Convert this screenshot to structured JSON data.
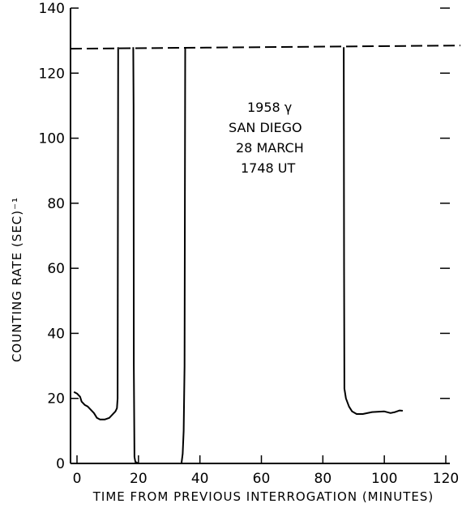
{
  "chart_data": {
    "type": "line",
    "title": "",
    "xlabel": "TIME FROM PREVIOUS INTERROGATION (MINUTES)",
    "ylabel": "COUNTING RATE (SEC)⁻¹",
    "xlim": [
      0,
      120
    ],
    "ylim": [
      0,
      140
    ],
    "xticks": [
      "0",
      "20",
      "40",
      "60",
      "80",
      "100",
      "120"
    ],
    "yticks": [
      "0",
      "20",
      "40",
      "60",
      "80",
      "100",
      "120",
      "140"
    ],
    "grid": false,
    "annotation": [
      "1958 γ",
      "SAN DIEGO",
      "28 MARCH",
      "1748 UT"
    ],
    "saturation_level": 128,
    "series": [
      {
        "values": [
          [
            -1,
            22
          ],
          [
            0,
            21.5
          ],
          [
            1,
            20.5
          ],
          [
            1.5,
            19
          ],
          [
            2.5,
            18
          ],
          [
            3.5,
            17.5
          ],
          [
            4.5,
            16.5
          ],
          [
            5.5,
            15.5
          ],
          [
            6.5,
            14
          ],
          [
            7.5,
            13.5
          ],
          [
            9,
            13.5
          ],
          [
            10.5,
            14
          ],
          [
            11.5,
            15
          ],
          [
            12.5,
            16
          ],
          [
            13,
            17
          ],
          [
            13.2,
            20
          ],
          [
            13.4,
            128
          ]
        ]
      },
      {
        "values": [
          [
            18.3,
            128
          ],
          [
            18.4,
            110
          ],
          [
            18.5,
            30
          ],
          [
            18.7,
            2
          ],
          [
            19,
            0.5
          ],
          [
            20,
            0
          ]
        ]
      },
      {
        "values": [
          [
            34,
            0
          ],
          [
            34.4,
            3
          ],
          [
            34.7,
            10
          ],
          [
            35,
            30
          ],
          [
            35.2,
            128
          ]
        ]
      },
      {
        "values": [
          [
            86.8,
            128
          ],
          [
            86.9,
            60
          ],
          [
            87,
            23
          ],
          [
            87.5,
            20
          ],
          [
            88.5,
            17.5
          ],
          [
            89.5,
            16
          ],
          [
            91,
            15.2
          ],
          [
            93,
            15.2
          ],
          [
            96,
            15.8
          ],
          [
            100,
            16
          ],
          [
            102,
            15.5
          ],
          [
            103.5,
            15.8
          ],
          [
            105,
            16.3
          ],
          [
            106,
            16.2
          ]
        ]
      }
    ]
  }
}
